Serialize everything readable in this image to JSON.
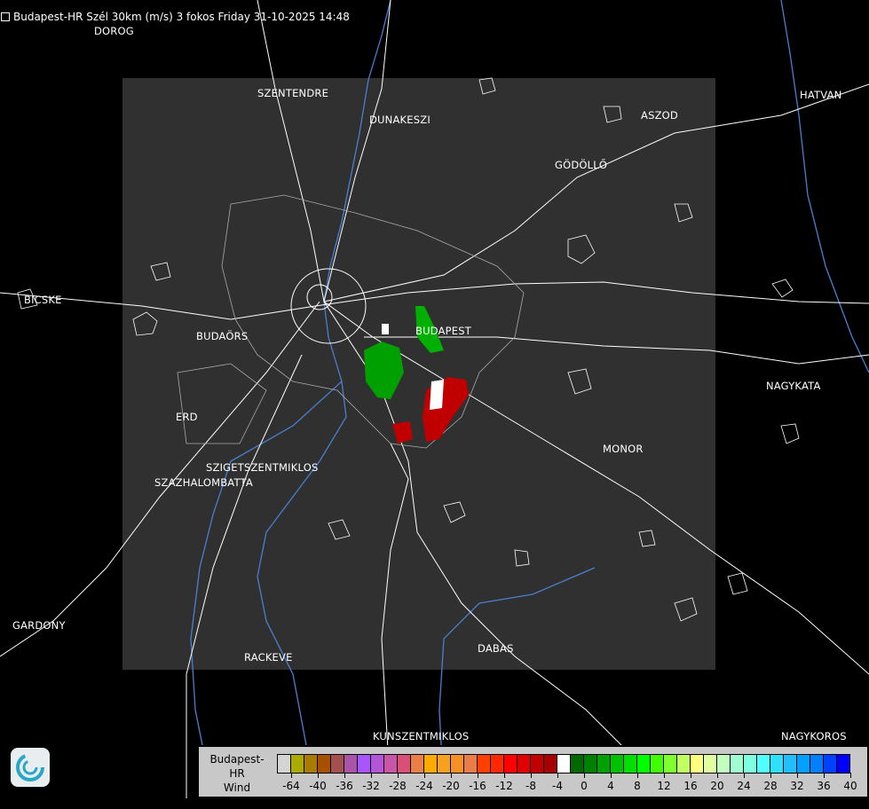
{
  "title": "Budapest-HR Szél 30km (m/s) 3 fokos Friday 31-10-2025 14:48",
  "cities": [
    {
      "name": "DOROG"
    },
    {
      "name": "SZENTENDRE"
    },
    {
      "name": "DUNAKESZI"
    },
    {
      "name": "ASZOD"
    },
    {
      "name": "HATVAN"
    },
    {
      "name": "GÖDÖLLŐ"
    },
    {
      "name": "BICSKE"
    },
    {
      "name": "BUDAÖRS"
    },
    {
      "name": "BUDAPEST"
    },
    {
      "name": "NAGYKATA"
    },
    {
      "name": "ERD"
    },
    {
      "name": "MONOR"
    },
    {
      "name": "SZIGETSZENTMIKLOS"
    },
    {
      "name": "SZAZHALOMBATTA"
    },
    {
      "name": "GARDONY"
    },
    {
      "name": "RACKEVE"
    },
    {
      "name": "DABAS"
    },
    {
      "name": "KUNSZENTMIKLOS"
    },
    {
      "name": "NAGYKOROS"
    }
  ],
  "legend": {
    "line1": "Budapest-HR",
    "line2": "Wind",
    "line3": "m/s",
    "colors": [
      "#d4d4d4",
      "#aaaa00",
      "#a87c00",
      "#a65000",
      "#a45050",
      "#a855a8",
      "#a855ff",
      "#b455d8",
      "#c855a8",
      "#d85078",
      "#ea8048",
      "#ffaa00",
      "#f8a020",
      "#f49028",
      "#ea7c48",
      "#ff4000",
      "#ff2800",
      "#ff0000",
      "#e00000",
      "#c00000",
      "#a80000",
      "#ffffff",
      "#006800",
      "#008000",
      "#00a000",
      "#00c000",
      "#00e000",
      "#00ff00",
      "#40ff00",
      "#80ff30",
      "#c0ff60",
      "#ffff80",
      "#e0ffa0",
      "#c0ffc0",
      "#a0ffd0",
      "#80ffe0",
      "#50ffff",
      "#30e0ff",
      "#20c0ff",
      "#00a0ff",
      "#0080ff",
      "#0040ff",
      "#0000ff"
    ],
    "ticks": [
      "-64",
      "-40",
      "-36",
      "-32",
      "-28",
      "-24",
      "-20",
      "-16",
      "-12",
      "-8",
      "-4",
      "0",
      "4",
      "8",
      "12",
      "16",
      "20",
      "24",
      "28",
      "32",
      "36",
      "40"
    ]
  },
  "colors": {
    "radar_area": "#303030",
    "background": "#000000",
    "roads": "#ffffff",
    "rivers": "#4a7fd0",
    "inbound": "#00b000",
    "outbound": "#c00000"
  }
}
